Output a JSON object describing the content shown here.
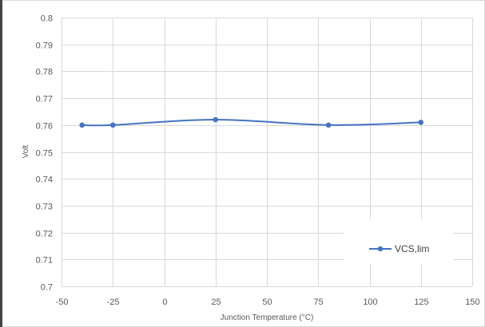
{
  "chart_data": {
    "type": "line",
    "title": "",
    "xlabel": "Junction Temperature (°C)",
    "ylabel": "Volt",
    "xlim": [
      -50,
      150
    ],
    "ylim": [
      0.7,
      0.8
    ],
    "x_ticks": [
      "-50",
      "-25",
      "0",
      "25",
      "50",
      "75",
      "100",
      "125",
      "150"
    ],
    "y_ticks": [
      "0.7",
      "0.71",
      "0.72",
      "0.73",
      "0.74",
      "0.75",
      "0.76",
      "0.77",
      "0.78",
      "0.79",
      "0.8"
    ],
    "grid": true,
    "smooth": true,
    "legend_position": "bottom-right",
    "series": [
      {
        "name": "VCS,lim",
        "color": "#4472c4",
        "x": [
          -40,
          -25,
          25,
          80,
          125
        ],
        "y": [
          0.76,
          0.76,
          0.762,
          0.76,
          0.761
        ]
      }
    ]
  }
}
